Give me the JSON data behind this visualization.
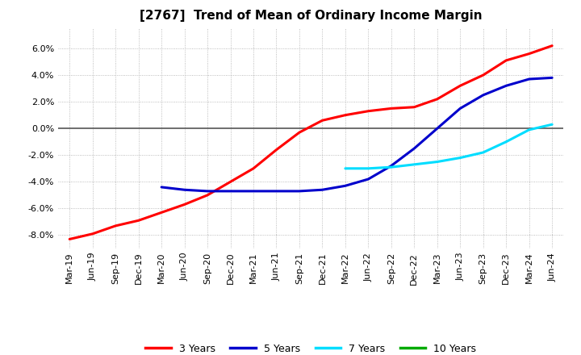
{
  "title": "[2767]  Trend of Mean of Ordinary Income Margin",
  "x_labels": [
    "Mar-19",
    "Jun-19",
    "Sep-19",
    "Dec-19",
    "Mar-20",
    "Jun-20",
    "Sep-20",
    "Dec-20",
    "Mar-21",
    "Jun-21",
    "Sep-21",
    "Dec-21",
    "Mar-22",
    "Jun-22",
    "Sep-22",
    "Dec-22",
    "Mar-23",
    "Jun-23",
    "Sep-23",
    "Dec-23",
    "Mar-24",
    "Jun-24"
  ],
  "ylim": [
    -0.09,
    0.075
  ],
  "yticks": [
    -0.08,
    -0.06,
    -0.04,
    -0.02,
    0.0,
    0.02,
    0.04,
    0.06
  ],
  "series": {
    "3 Years": {
      "color": "#ff0000",
      "x_indices": [
        0,
        1,
        2,
        3,
        4,
        5,
        6,
        7,
        8,
        9,
        10,
        11,
        12,
        13,
        14,
        15,
        16,
        17,
        18,
        19,
        20,
        21
      ],
      "values": [
        -0.083,
        -0.079,
        -0.073,
        -0.069,
        -0.063,
        -0.057,
        -0.05,
        -0.04,
        -0.03,
        -0.016,
        -0.003,
        0.006,
        0.01,
        0.013,
        0.015,
        0.016,
        0.022,
        0.032,
        0.04,
        0.051,
        0.056,
        0.062
      ]
    },
    "5 Years": {
      "color": "#0000cc",
      "x_indices": [
        4,
        5,
        6,
        7,
        8,
        9,
        10,
        11,
        12,
        13,
        14,
        15,
        16,
        17,
        18,
        19,
        20,
        21
      ],
      "values": [
        -0.044,
        -0.046,
        -0.047,
        -0.047,
        -0.047,
        -0.047,
        -0.047,
        -0.046,
        -0.043,
        -0.038,
        -0.028,
        -0.015,
        0.0,
        0.015,
        0.025,
        0.032,
        0.037,
        0.038
      ]
    },
    "7 Years": {
      "color": "#00ddff",
      "x_indices": [
        12,
        13,
        14,
        15,
        16,
        17,
        18,
        19,
        20,
        21
      ],
      "values": [
        -0.03,
        -0.03,
        -0.029,
        -0.027,
        -0.025,
        -0.022,
        -0.018,
        -0.01,
        -0.001,
        0.003
      ]
    },
    "10 Years": {
      "color": "#00aa00",
      "x_indices": [],
      "values": []
    }
  },
  "legend_labels": [
    "3 Years",
    "5 Years",
    "7 Years",
    "10 Years"
  ],
  "legend_colors": [
    "#ff0000",
    "#0000cc",
    "#00ddff",
    "#00aa00"
  ],
  "background_color": "#ffffff",
  "grid_color": "#aaaaaa",
  "title_fontsize": 11,
  "tick_fontsize": 8,
  "legend_fontsize": 9
}
